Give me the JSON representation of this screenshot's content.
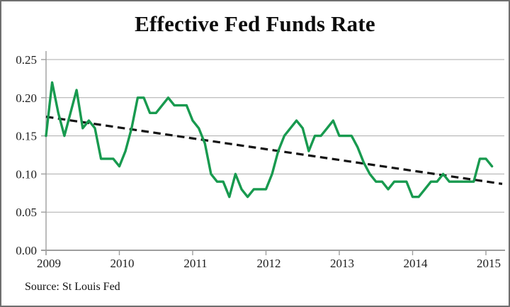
{
  "chart_data": {
    "type": "line",
    "title": "Effective Fed Funds Rate",
    "source_note": "Source: St Louis Fed",
    "x_tick_labels": [
      "2009",
      "2010",
      "2011",
      "2012",
      "2013",
      "2014",
      "2015"
    ],
    "y_tick_labels": [
      "0.00",
      "0.05",
      "0.10",
      "0.15",
      "0.20",
      "0.25"
    ],
    "ylim": [
      0,
      0.25
    ],
    "y_tick_step": 0.05,
    "x_range": {
      "start": "2009-01",
      "end": "2015-02",
      "frequency": "monthly"
    },
    "grid": "horizontal",
    "legend": "none",
    "series": [
      {
        "name": "Effective Fed Funds Rate",
        "type": "line",
        "color": "#189a4f",
        "values": [
          0.15,
          0.22,
          0.18,
          0.15,
          0.18,
          0.21,
          0.16,
          0.17,
          0.16,
          0.12,
          0.12,
          0.12,
          0.11,
          0.13,
          0.16,
          0.2,
          0.2,
          0.18,
          0.18,
          0.19,
          0.2,
          0.19,
          0.19,
          0.19,
          0.17,
          0.16,
          0.14,
          0.1,
          0.09,
          0.09,
          0.07,
          0.1,
          0.08,
          0.07,
          0.08,
          0.08,
          0.08,
          0.1,
          0.13,
          0.15,
          0.16,
          0.17,
          0.16,
          0.13,
          0.15,
          0.15,
          0.16,
          0.17,
          0.15,
          0.15,
          0.15,
          0.135,
          0.115,
          0.1,
          0.09,
          0.09,
          0.08,
          0.09,
          0.09,
          0.09,
          0.07,
          0.07,
          0.08,
          0.09,
          0.09,
          0.1,
          0.09,
          0.09,
          0.09,
          0.09,
          0.09,
          0.12,
          0.12,
          0.11
        ]
      },
      {
        "name": "Linear trend",
        "type": "trendline",
        "color": "#141414",
        "dashed": true,
        "endpoint_values": [
          0.175,
          0.087
        ]
      }
    ],
    "colors": {
      "grid": "#ababab",
      "axis": "#9e9e9e",
      "text": "#1c1c1c"
    }
  }
}
